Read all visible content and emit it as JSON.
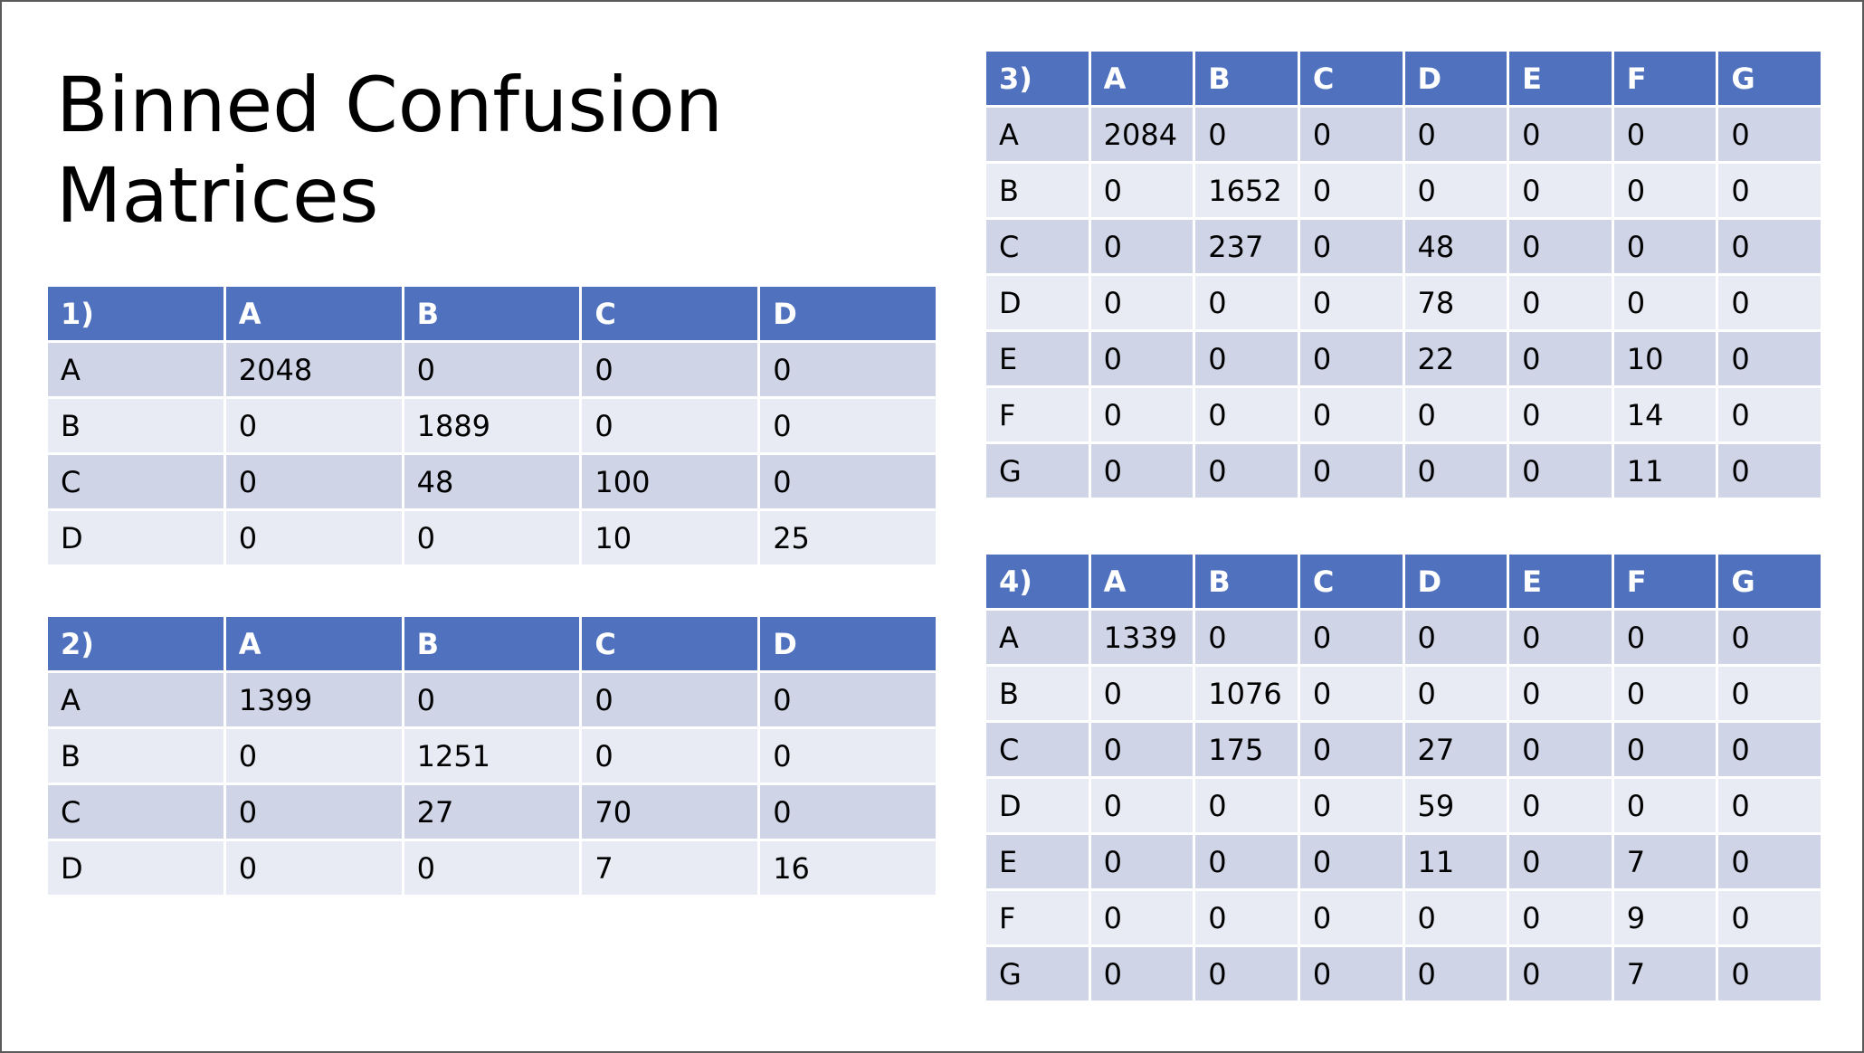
{
  "title": {
    "line1": "Binned Confusion",
    "line2": "Matrices"
  },
  "matrices": [
    {
      "header": [
        "1)",
        "A",
        "B",
        "C",
        "D"
      ],
      "rows": [
        [
          "A",
          "2048",
          "0",
          "0",
          "0"
        ],
        [
          "B",
          "0",
          "1889",
          "0",
          "0"
        ],
        [
          "C",
          "0",
          "48",
          "100",
          "0"
        ],
        [
          "D",
          "0",
          "0",
          "10",
          "25"
        ]
      ]
    },
    {
      "header": [
        "2)",
        "A",
        "B",
        "C",
        "D"
      ],
      "rows": [
        [
          "A",
          "1399",
          "0",
          "0",
          "0"
        ],
        [
          "B",
          "0",
          "1251",
          "0",
          "0"
        ],
        [
          "C",
          "0",
          "27",
          "70",
          "0"
        ],
        [
          "D",
          "0",
          "0",
          "7",
          "16"
        ]
      ]
    },
    {
      "header": [
        "3)",
        "A",
        "B",
        "C",
        "D",
        "E",
        "F",
        "G"
      ],
      "rows": [
        [
          "A",
          "2084",
          "0",
          "0",
          "0",
          "0",
          "0",
          "0"
        ],
        [
          "B",
          "0",
          "1652",
          "0",
          "0",
          "0",
          "0",
          "0"
        ],
        [
          "C",
          "0",
          "237",
          "0",
          "48",
          "0",
          "0",
          "0"
        ],
        [
          "D",
          "0",
          "0",
          "0",
          "78",
          "0",
          "0",
          "0"
        ],
        [
          "E",
          "0",
          "0",
          "0",
          "22",
          "0",
          "10",
          "0"
        ],
        [
          "F",
          "0",
          "0",
          "0",
          "0",
          "0",
          "14",
          "0"
        ],
        [
          "G",
          "0",
          "0",
          "0",
          "0",
          "0",
          "11",
          "0"
        ]
      ]
    },
    {
      "header": [
        "4)",
        "A",
        "B",
        "C",
        "D",
        "E",
        "F",
        "G"
      ],
      "rows": [
        [
          "A",
          "1339",
          "0",
          "0",
          "0",
          "0",
          "0",
          "0"
        ],
        [
          "B",
          "0",
          "1076",
          "0",
          "0",
          "0",
          "0",
          "0"
        ],
        [
          "C",
          "0",
          "175",
          "0",
          "27",
          "0",
          "0",
          "0"
        ],
        [
          "D",
          "0",
          "0",
          "0",
          "59",
          "0",
          "0",
          "0"
        ],
        [
          "E",
          "0",
          "0",
          "0",
          "11",
          "0",
          "7",
          "0"
        ],
        [
          "F",
          "0",
          "0",
          "0",
          "0",
          "0",
          "9",
          "0"
        ],
        [
          "G",
          "0",
          "0",
          "0",
          "0",
          "0",
          "7",
          "0"
        ]
      ]
    }
  ],
  "colors": {
    "header_bg": "#4f71be",
    "row_odd": "#cfd5e7",
    "row_even": "#e8ebf4"
  }
}
